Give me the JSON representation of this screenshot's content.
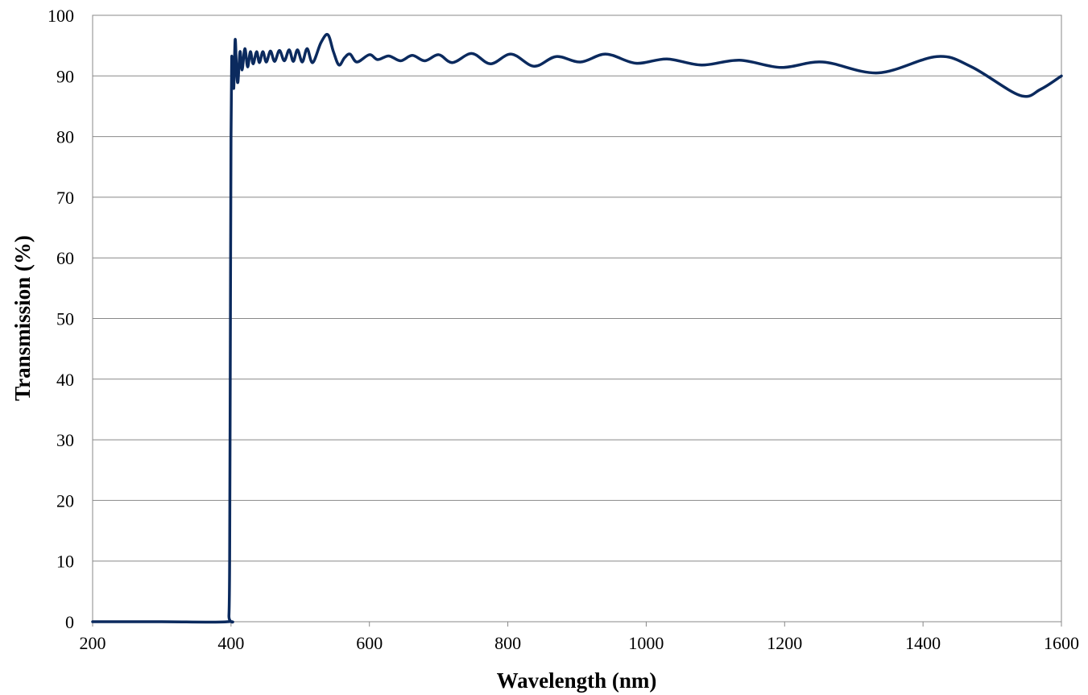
{
  "chart_data": {
    "type": "line",
    "title": "",
    "xlabel": "Wavelength (nm)",
    "ylabel": "Transmission (%)",
    "xlim": [
      200,
      1600
    ],
    "ylim": [
      0,
      100
    ],
    "x_ticks": [
      200,
      400,
      600,
      800,
      1000,
      1200,
      1400,
      1600
    ],
    "y_ticks": [
      0,
      10,
      20,
      30,
      40,
      50,
      60,
      70,
      80,
      90,
      100
    ],
    "grid": "horizontal",
    "legend": "none",
    "series": [
      {
        "color": "#0b2a5e",
        "points": [
          [
            200,
            0
          ],
          [
            300,
            0
          ],
          [
            395,
            0
          ],
          [
            397,
            1
          ],
          [
            398,
            10
          ],
          [
            399,
            45
          ],
          [
            400,
            80
          ],
          [
            401,
            93
          ],
          [
            402,
            89
          ],
          [
            403,
            92
          ],
          [
            404,
            88
          ],
          [
            406,
            96
          ],
          [
            408,
            91
          ],
          [
            410,
            89
          ],
          [
            413,
            94
          ],
          [
            416,
            91
          ],
          [
            420,
            94.5
          ],
          [
            424,
            91.5
          ],
          [
            428,
            94
          ],
          [
            432,
            92
          ],
          [
            437,
            94
          ],
          [
            441,
            92.2
          ],
          [
            446,
            94
          ],
          [
            451,
            92.3
          ],
          [
            457,
            94.1
          ],
          [
            463,
            92.4
          ],
          [
            470,
            94.2
          ],
          [
            477,
            92.5
          ],
          [
            484,
            94.3
          ],
          [
            490,
            92.4
          ],
          [
            496,
            94.3
          ],
          [
            503,
            92.3
          ],
          [
            510,
            94.5
          ],
          [
            518,
            92.2
          ],
          [
            530,
            95.5
          ],
          [
            540,
            96.8
          ],
          [
            548,
            94
          ],
          [
            556,
            91.8
          ],
          [
            564,
            93
          ],
          [
            572,
            93.6
          ],
          [
            582,
            92.3
          ],
          [
            600,
            93.5
          ],
          [
            612,
            92.7
          ],
          [
            628,
            93.3
          ],
          [
            645,
            92.5
          ],
          [
            662,
            93.4
          ],
          [
            680,
            92.5
          ],
          [
            700,
            93.5
          ],
          [
            720,
            92.2
          ],
          [
            748,
            93.7
          ],
          [
            775,
            92
          ],
          [
            805,
            93.6
          ],
          [
            838,
            91.6
          ],
          [
            870,
            93.2
          ],
          [
            905,
            92.3
          ],
          [
            942,
            93.6
          ],
          [
            985,
            92.1
          ],
          [
            1030,
            92.8
          ],
          [
            1080,
            91.8
          ],
          [
            1135,
            92.6
          ],
          [
            1195,
            91.4
          ],
          [
            1255,
            92.3
          ],
          [
            1335,
            90.5
          ],
          [
            1420,
            93.2
          ],
          [
            1470,
            91.5
          ],
          [
            1540,
            86.8
          ],
          [
            1570,
            87.8
          ],
          [
            1600,
            90
          ]
        ]
      }
    ]
  }
}
